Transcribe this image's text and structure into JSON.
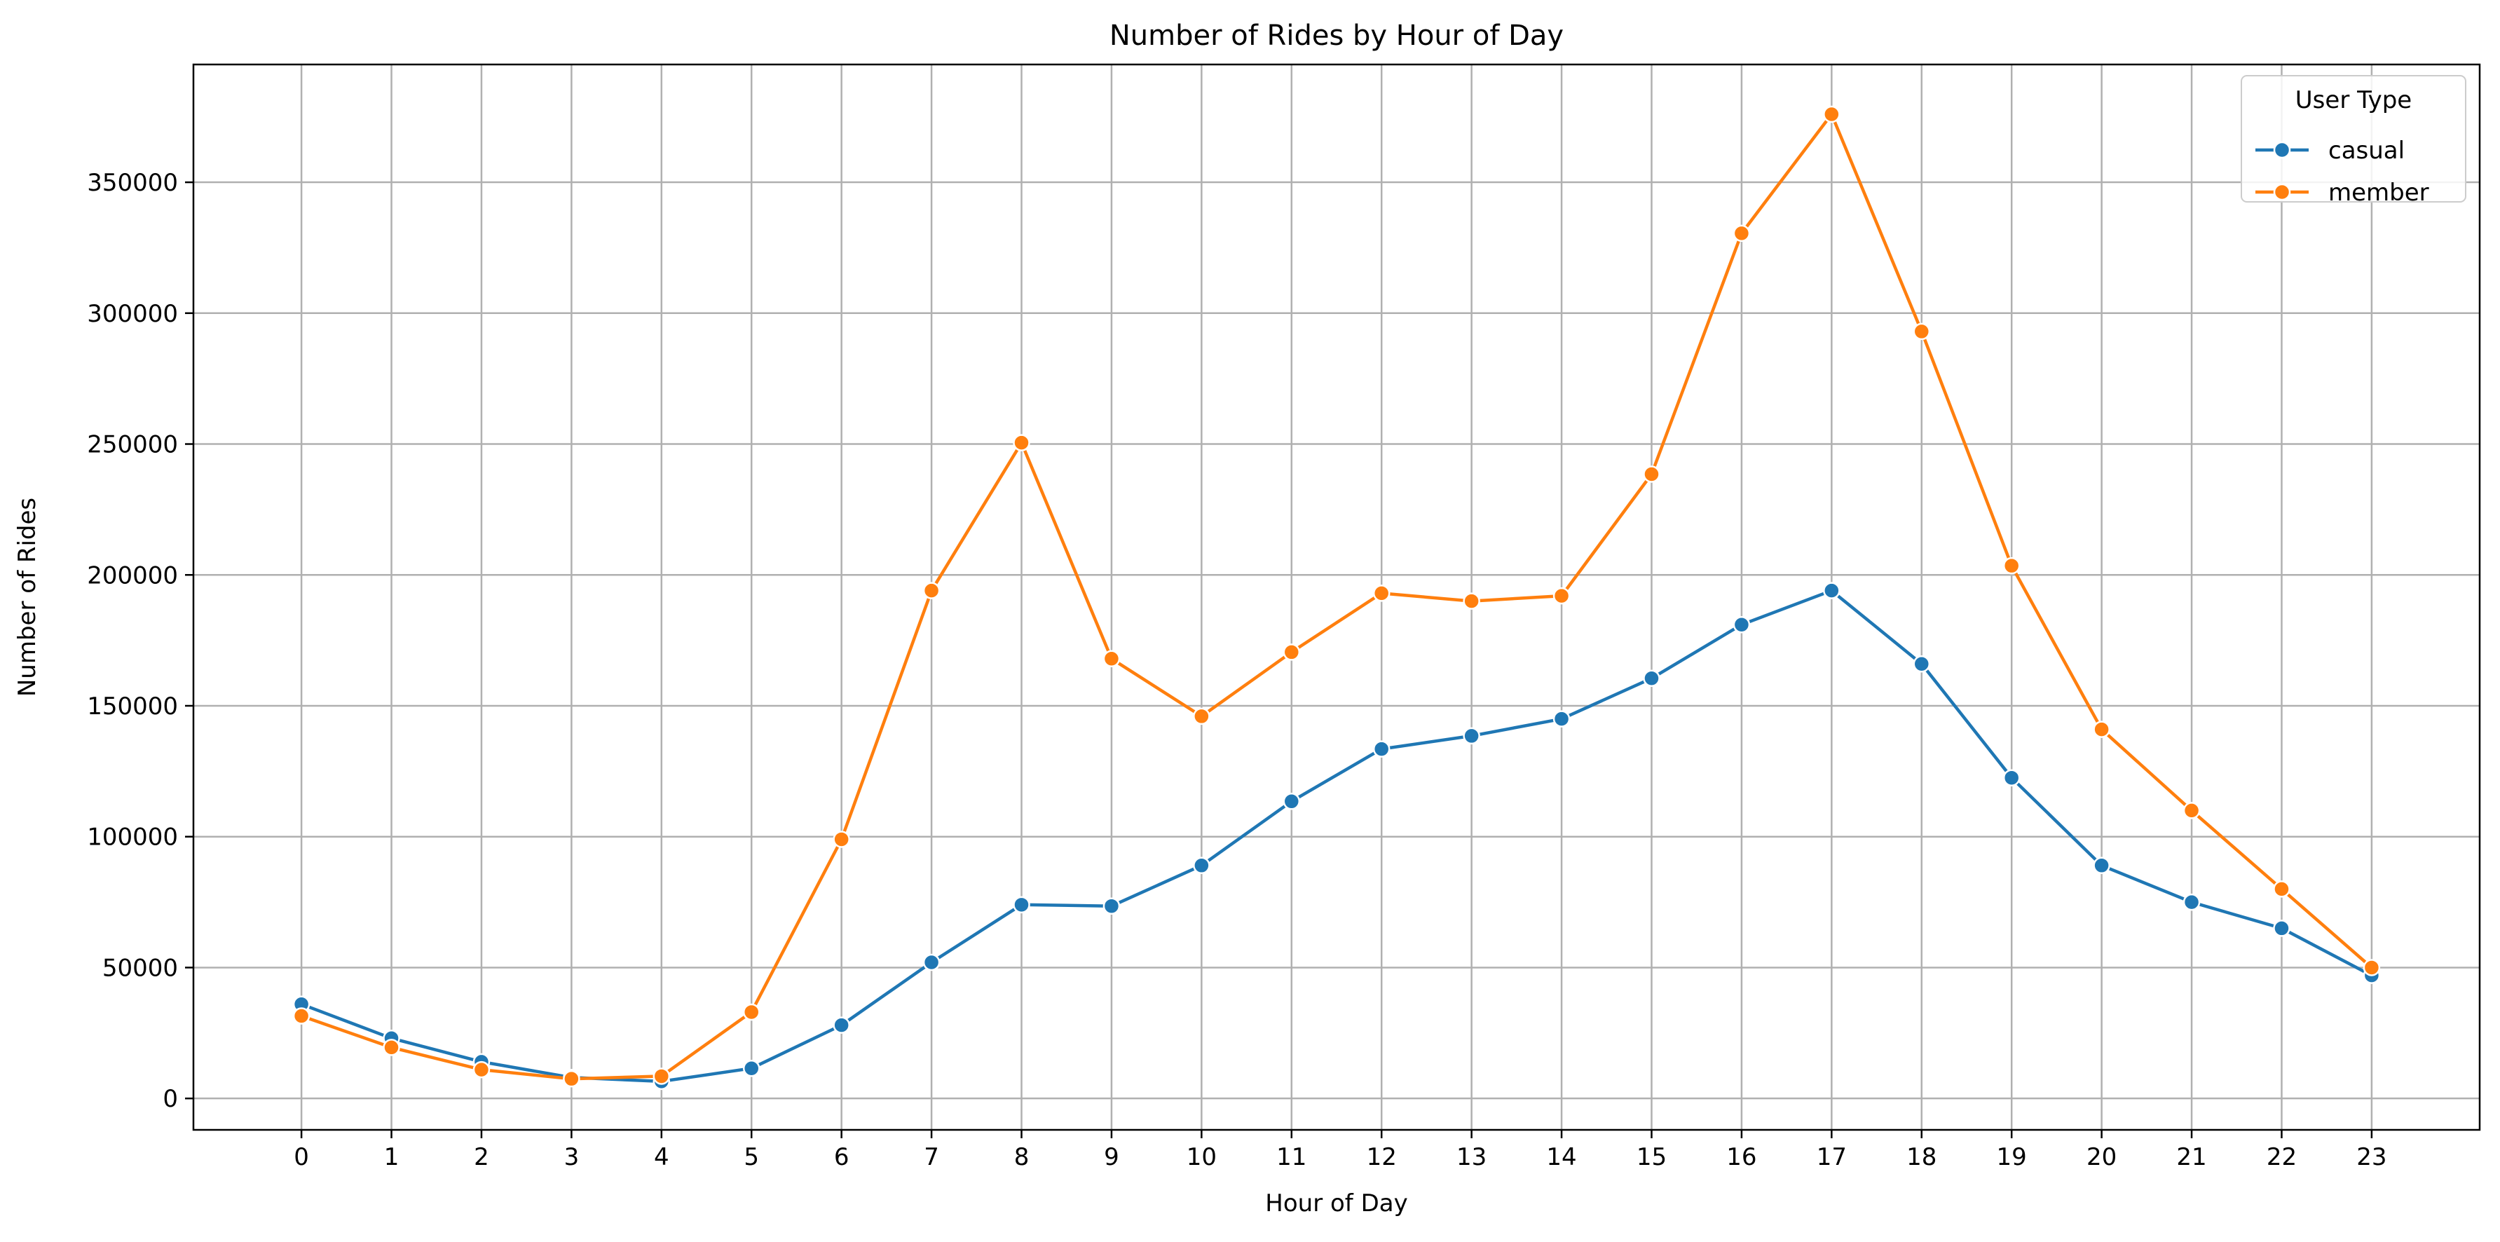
{
  "chart_data": {
    "type": "line",
    "title": "Number of Rides by Hour of Day",
    "xlabel": "Hour of Day",
    "ylabel": "Number of Rides",
    "x": [
      0,
      1,
      2,
      3,
      4,
      5,
      6,
      7,
      8,
      9,
      10,
      11,
      12,
      13,
      14,
      15,
      16,
      17,
      18,
      19,
      20,
      21,
      22,
      23
    ],
    "xlim": [
      -1.2,
      24.2
    ],
    "ylim": [
      -12000,
      395000
    ],
    "y_ticks": [
      0,
      50000,
      100000,
      150000,
      200000,
      250000,
      300000,
      350000
    ],
    "grid": true,
    "legend": {
      "title": "User Type",
      "placement": "top-right"
    },
    "series": [
      {
        "name": "casual",
        "color": "#1f77b4",
        "values": [
          36000,
          23000,
          14000,
          8000,
          6500,
          11500,
          28000,
          52000,
          74000,
          73500,
          89000,
          113500,
          133500,
          138500,
          145000,
          160500,
          181000,
          194000,
          166000,
          122500,
          89000,
          75000,
          65000,
          47000
        ]
      },
      {
        "name": "member",
        "color": "#ff7f0e",
        "values": [
          31500,
          19500,
          11000,
          7500,
          8500,
          33000,
          99000,
          194000,
          250500,
          168000,
          146000,
          170500,
          193000,
          190000,
          192000,
          238500,
          330500,
          376000,
          293000,
          203500,
          141000,
          110000,
          80000,
          50000
        ]
      }
    ]
  }
}
